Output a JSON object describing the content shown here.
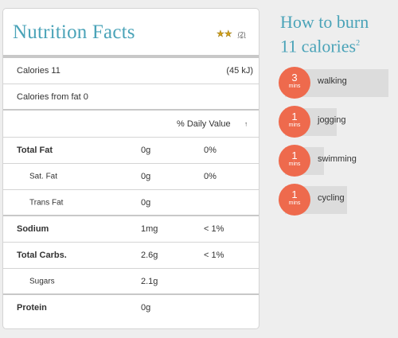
{
  "nutrition": {
    "title": "Nutrition Facts",
    "rating_count": "(2)",
    "calories_label": "Calories 11",
    "calories_kj": "(45 kJ)",
    "calories_from_fat": "Calories from fat 0",
    "dv_header": "% Daily Value",
    "dv_arrow": "↑",
    "rows": [
      {
        "name": "Total Fat",
        "amount": "0g",
        "dv": "0%"
      },
      {
        "name": "Sat. Fat",
        "amount": "0g",
        "dv": "0%"
      },
      {
        "name": "Trans Fat",
        "amount": "0g",
        "dv": ""
      },
      {
        "name": "Sodium",
        "amount": "1mg",
        "dv": "< 1%"
      },
      {
        "name": "Total Carbs.",
        "amount": "2.6g",
        "dv": "< 1%"
      },
      {
        "name": "Sugars",
        "amount": "2.1g",
        "dv": ""
      },
      {
        "name": "Protein",
        "amount": "0g",
        "dv": ""
      }
    ]
  },
  "burn": {
    "title_line1": "How to burn",
    "title_line2": "11 calories",
    "footnote": "2",
    "activities": [
      {
        "amount": "3",
        "unit": "mins",
        "label": "walking",
        "level": 1.0
      },
      {
        "amount": "1",
        "unit": "mins",
        "label": "jogging",
        "level": 0.5
      },
      {
        "amount": "1",
        "unit": "mins",
        "label": "swimming",
        "level": 0.38
      },
      {
        "amount": "1",
        "unit": "mins",
        "label": "cycling",
        "level": 0.6
      }
    ]
  },
  "colors": {
    "accent_teal": "#4aa3b8",
    "burn_circle": "#ee6a4d",
    "star": "#d4a017"
  },
  "icons": [
    "star-icon",
    "sort-arrow-icon"
  ]
}
